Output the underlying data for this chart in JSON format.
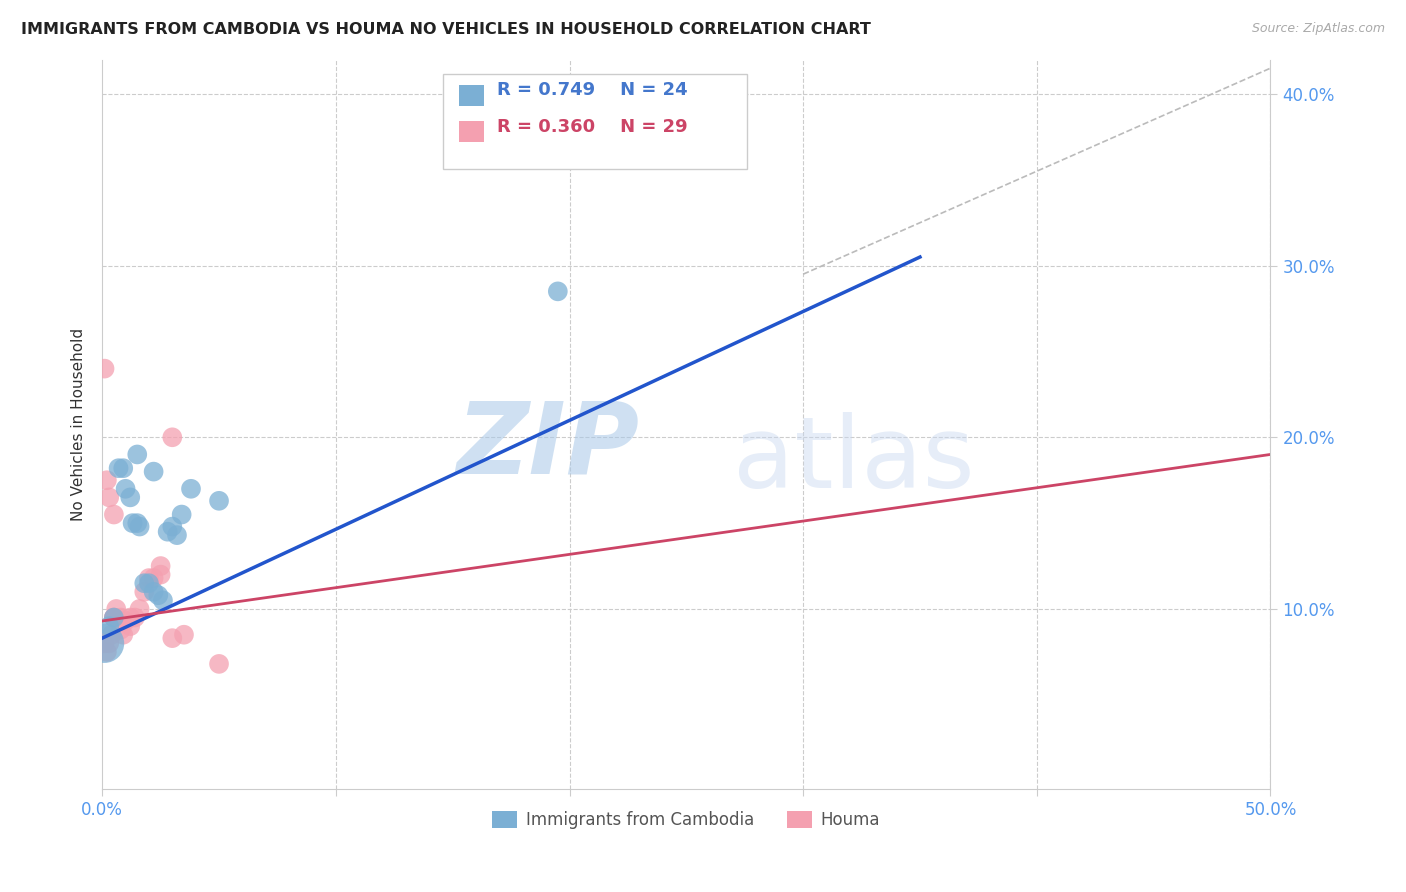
{
  "title": "IMMIGRANTS FROM CAMBODIA VS HOUMA NO VEHICLES IN HOUSEHOLD CORRELATION CHART",
  "source": "Source: ZipAtlas.com",
  "ylabel": "No Vehicles in Household",
  "xlim": [
    0.0,
    0.5
  ],
  "ylim": [
    -0.005,
    0.42
  ],
  "xtick_positions": [
    0.0,
    0.1,
    0.2,
    0.3,
    0.4,
    0.5
  ],
  "ytick_positions": [
    0.1,
    0.2,
    0.3,
    0.4
  ],
  "background_color": "#ffffff",
  "grid_color": "#cccccc",
  "legend_R1": "R = 0.749",
  "legend_N1": "N = 24",
  "legend_R2": "R = 0.360",
  "legend_N2": "N = 29",
  "legend_label1": "Immigrants from Cambodia",
  "legend_label2": "Houma",
  "series1_color": "#7bafd4",
  "series2_color": "#f4a0b0",
  "trendline1_color": "#2255cc",
  "trendline2_color": "#cc4466",
  "watermark_zip": "ZIP",
  "watermark_atlas": "atlas",
  "dashed_line_color": "#bbbbbb",
  "series1_x": [
    0.003,
    0.005,
    0.007,
    0.009,
    0.01,
    0.012,
    0.013,
    0.015,
    0.016,
    0.018,
    0.02,
    0.022,
    0.024,
    0.026,
    0.03,
    0.032,
    0.034,
    0.001,
    0.015,
    0.022,
    0.028,
    0.038,
    0.05,
    0.195
  ],
  "series1_y": [
    0.09,
    0.095,
    0.182,
    0.182,
    0.17,
    0.165,
    0.15,
    0.15,
    0.148,
    0.115,
    0.115,
    0.11,
    0.108,
    0.105,
    0.148,
    0.143,
    0.155,
    0.08,
    0.19,
    0.18,
    0.145,
    0.17,
    0.163,
    0.285
  ],
  "series1_sizes": [
    200,
    200,
    200,
    200,
    200,
    200,
    200,
    200,
    200,
    200,
    200,
    200,
    200,
    200,
    200,
    200,
    200,
    800,
    200,
    200,
    200,
    200,
    200,
    200
  ],
  "series2_x": [
    0.001,
    0.002,
    0.003,
    0.004,
    0.005,
    0.005,
    0.006,
    0.007,
    0.008,
    0.009,
    0.01,
    0.012,
    0.014,
    0.016,
    0.018,
    0.02,
    0.022,
    0.025,
    0.025,
    0.03,
    0.035,
    0.001,
    0.002,
    0.003,
    0.005,
    0.008,
    0.012,
    0.03,
    0.05
  ],
  "series2_y": [
    0.08,
    0.075,
    0.08,
    0.085,
    0.095,
    0.095,
    0.1,
    0.093,
    0.088,
    0.085,
    0.093,
    0.095,
    0.095,
    0.1,
    0.11,
    0.118,
    0.118,
    0.125,
    0.12,
    0.2,
    0.085,
    0.24,
    0.175,
    0.165,
    0.155,
    0.095,
    0.09,
    0.083,
    0.068
  ],
  "series2_sizes": [
    200,
    200,
    200,
    200,
    200,
    200,
    200,
    200,
    200,
    200,
    200,
    200,
    200,
    200,
    200,
    200,
    200,
    200,
    200,
    200,
    200,
    200,
    200,
    200,
    200,
    200,
    200,
    200,
    200
  ],
  "trendline1_x0": 0.0,
  "trendline1_y0": 0.083,
  "trendline1_x1": 0.35,
  "trendline1_y1": 0.305,
  "trendline2_x0": 0.0,
  "trendline2_y0": 0.093,
  "trendline2_x1": 0.5,
  "trendline2_y1": 0.19,
  "dashed_line_x0": 0.3,
  "dashed_line_y0": 0.295,
  "dashed_line_x1": 0.5,
  "dashed_line_y1": 0.415
}
